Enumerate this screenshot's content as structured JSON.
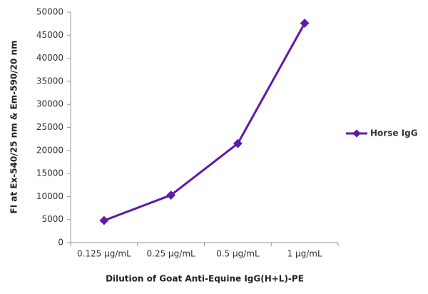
{
  "chart_data": {
    "type": "line",
    "x_label": "Dilution of Goat Anti-Equine IgG(H+L)-PE",
    "y_label": "FI at Ex-540/25 nm & Em-590/20 nm",
    "categories": [
      "0.125 µg/mL",
      "0.25 µg/mL",
      "0.5 µg/mL",
      "1 µg/mL"
    ],
    "series": [
      {
        "name": "Horse IgG",
        "color": "#5e1aa8",
        "values": [
          4800,
          10300,
          21500,
          47600
        ]
      }
    ],
    "ylim": [
      0,
      50000
    ],
    "yticks": [
      0,
      5000,
      10000,
      15000,
      20000,
      25000,
      30000,
      35000,
      40000,
      45000,
      50000
    ],
    "legend": "right"
  }
}
